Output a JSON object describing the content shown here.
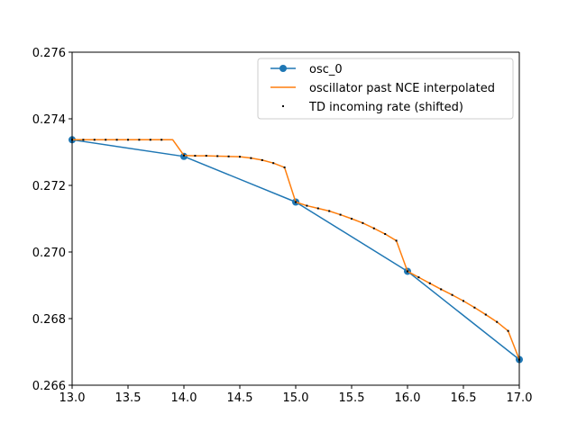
{
  "chart_data": {
    "type": "line",
    "title": "",
    "xlabel": "",
    "ylabel": "",
    "xlim": [
      13.0,
      17.0
    ],
    "ylim": [
      0.266,
      0.276
    ],
    "xticks": [
      "13.0",
      "13.5",
      "14.0",
      "14.5",
      "15.0",
      "15.5",
      "16.0",
      "16.5",
      "17.0"
    ],
    "yticks": [
      "0.266",
      "0.268",
      "0.270",
      "0.272",
      "0.274",
      "0.276"
    ],
    "grid": false,
    "legend_position": "top-right",
    "series": [
      {
        "name": "osc_0",
        "style": "line-marker",
        "color": "#1f77b4",
        "x": [
          13.0,
          14.0,
          15.0,
          16.0,
          17.0
        ],
        "y": [
          0.27337,
          0.27287,
          0.2715,
          0.26942,
          0.26677
        ]
      },
      {
        "name": "oscillator past NCE interpolated",
        "style": "line",
        "color": "#ff7f0e",
        "x": [
          13.0,
          13.1,
          13.2,
          13.3,
          13.4,
          13.5,
          13.6,
          13.7,
          13.8,
          13.9,
          14.0,
          14.1,
          14.2,
          14.3,
          14.4,
          14.5,
          14.6,
          14.7,
          14.8,
          14.9,
          15.0,
          15.1,
          15.2,
          15.3,
          15.4,
          15.5,
          15.6,
          15.7,
          15.8,
          15.9,
          16.0,
          16.1,
          16.2,
          16.3,
          16.4,
          16.5,
          16.6,
          16.7,
          16.8,
          16.9,
          17.0
        ],
        "y": [
          0.27337,
          0.27337,
          0.27337,
          0.27337,
          0.27337,
          0.27337,
          0.27337,
          0.27337,
          0.27337,
          0.27337,
          0.2729,
          0.27289,
          0.27289,
          0.27288,
          0.27287,
          0.27286,
          0.27282,
          0.27276,
          0.27267,
          0.27254,
          0.2715,
          0.27139,
          0.27131,
          0.27123,
          0.27112,
          0.271,
          0.27087,
          0.27071,
          0.27054,
          0.27034,
          0.26942,
          0.26924,
          0.26906,
          0.26888,
          0.26871,
          0.26853,
          0.26833,
          0.26812,
          0.2679,
          0.26763,
          0.26677
        ]
      },
      {
        "name": "TD incoming rate (shifted)",
        "style": "points",
        "color": "#000000",
        "x": [
          13.0,
          13.1,
          13.2,
          13.3,
          13.4,
          13.5,
          13.6,
          13.7,
          13.8,
          14.0,
          14.1,
          14.2,
          14.3,
          14.4,
          14.5,
          14.6,
          14.7,
          14.8,
          14.9,
          15.0,
          15.1,
          15.2,
          15.3,
          15.4,
          15.5,
          15.6,
          15.7,
          15.8,
          15.9,
          16.0,
          16.1,
          16.2,
          16.3,
          16.4,
          16.5,
          16.6,
          16.7,
          16.8,
          16.9,
          17.0
        ],
        "y": [
          0.27337,
          0.27337,
          0.27337,
          0.27337,
          0.27337,
          0.27337,
          0.27337,
          0.27337,
          0.27337,
          0.2729,
          0.27289,
          0.27289,
          0.27288,
          0.27287,
          0.27286,
          0.27282,
          0.27276,
          0.27267,
          0.27254,
          0.2715,
          0.27139,
          0.27131,
          0.27123,
          0.27112,
          0.271,
          0.27087,
          0.27071,
          0.27054,
          0.27034,
          0.26942,
          0.26924,
          0.26906,
          0.26888,
          0.26871,
          0.26853,
          0.26833,
          0.26812,
          0.2679,
          0.26763,
          0.26677
        ]
      }
    ]
  }
}
